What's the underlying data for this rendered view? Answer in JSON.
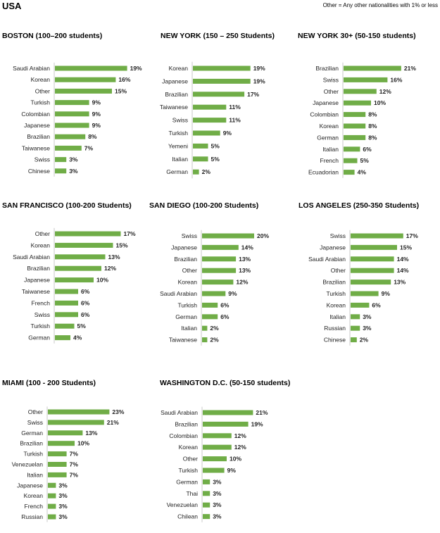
{
  "page": {
    "title": "USA",
    "note": "Other = Any other nationalities with 1% or less"
  },
  "style": {
    "bar_color": "#70ad47",
    "axis_color": "#c8c8c8"
  },
  "chart_data": [
    {
      "type": "bar",
      "orientation": "horizontal",
      "title": "BOSTON (100–200 students)",
      "categories": [
        "Saudi Arabian",
        "Korean",
        "Other",
        "Turkish",
        "Colombian",
        "Japanese",
        "Brazilian",
        "Taiwanese",
        "Swiss",
        "Chinese"
      ],
      "values": [
        19,
        16,
        15,
        9,
        9,
        9,
        8,
        7,
        3,
        3
      ],
      "labels": [
        "19%",
        "16%",
        "15%",
        "9%",
        "9%",
        "9%",
        "8%",
        "7%",
        "3%",
        "3%"
      ]
    },
    {
      "type": "bar",
      "orientation": "horizontal",
      "title": "NEW YORK (150 – 250 Students)",
      "categories": [
        "Korean",
        "Japanese",
        "Brazilian",
        "Taiwanese",
        "Swiss",
        "Turkish",
        "Yemeni",
        "Italian",
        "German"
      ],
      "values": [
        19,
        19,
        17,
        11,
        11,
        9,
        5,
        5,
        2
      ],
      "labels": [
        "19%",
        "19%",
        "17%",
        "11%",
        "11%",
        "9%",
        "5%",
        "5%",
        "2%"
      ]
    },
    {
      "type": "bar",
      "orientation": "horizontal",
      "title": "NEW YORK 30+ (50-150 students)",
      "categories": [
        "Brazilian",
        "Swiss",
        "Other",
        "Japanese",
        "Colombian",
        "Korean",
        "German",
        "Italian",
        "French",
        "Ecuadorian"
      ],
      "values": [
        21,
        16,
        12,
        10,
        8,
        8,
        8,
        6,
        5,
        4
      ],
      "labels": [
        "21%",
        "16%",
        "12%",
        "10%",
        "8%",
        "8%",
        "8%",
        "6%",
        "5%",
        "4%"
      ]
    },
    {
      "type": "bar",
      "orientation": "horizontal",
      "title": "SAN FRANCISCO (100-200 Students)",
      "categories": [
        "Other",
        "Korean",
        "Saudi Arabian",
        "Brazilian",
        "Japanese",
        "Taiwanese",
        "French",
        "Swiss",
        "Turkish",
        "German"
      ],
      "values": [
        17,
        15,
        13,
        12,
        10,
        6,
        6,
        6,
        5,
        4
      ],
      "labels": [
        "17%",
        "15%",
        "13%",
        "12%",
        "10%",
        "6%",
        "6%",
        "6%",
        "5%",
        "4%"
      ]
    },
    {
      "type": "bar",
      "orientation": "horizontal",
      "title": "SAN DIEGO (100-200 Students)",
      "categories": [
        "Swiss",
        "Japanese",
        "Brazilian",
        "Other",
        "Korean",
        "Saudi Arabian",
        "Turkish",
        "German",
        "Italian",
        "Taiwanese"
      ],
      "values": [
        20,
        14,
        13,
        13,
        12,
        9,
        6,
        6,
        2,
        2
      ],
      "labels": [
        "20%",
        "14%",
        "13%",
        "13%",
        "12%",
        "9%",
        "6%",
        "6%",
        "2%",
        "2%"
      ]
    },
    {
      "type": "bar",
      "orientation": "horizontal",
      "title": "LOS ANGELES (250-350 Students)",
      "categories": [
        "Swiss",
        "Japanese",
        "Saudi Arabian",
        "Other",
        "Brazilian",
        "Turkish",
        "Korean",
        "Italian",
        "Russian",
        "Chinese"
      ],
      "values": [
        17,
        15,
        14,
        14,
        13,
        9,
        6,
        3,
        3,
        2
      ],
      "labels": [
        "17%",
        "15%",
        "14%",
        "14%",
        "13%",
        "9%",
        "6%",
        "3%",
        "3%",
        "2%"
      ]
    },
    {
      "type": "bar",
      "orientation": "horizontal",
      "title": "MIAMI (100 - 200 Students)",
      "categories": [
        "Other",
        "Swiss",
        "German",
        "Brazilian",
        "Turkish",
        "Venezuelan",
        "Italian",
        "Japanese",
        "Korean",
        "French",
        "Russian"
      ],
      "values": [
        23,
        21,
        13,
        10,
        7,
        7,
        7,
        3,
        3,
        3,
        3
      ],
      "labels": [
        "23%",
        "21%",
        "13%",
        "10%",
        "7%",
        "7%",
        "7%",
        "3%",
        "3%",
        "3%",
        "3%"
      ]
    },
    {
      "type": "bar",
      "orientation": "horizontal",
      "title": "WASHINGTON D.C. (50-150 students)",
      "categories": [
        "Saudi Arabian",
        "Brazilian",
        "Colombian",
        "Korean",
        "Other",
        "Turkish",
        "German",
        "Thai",
        "Venezuelan",
        "Chilean"
      ],
      "values": [
        21,
        19,
        12,
        12,
        10,
        9,
        3,
        3,
        3,
        3
      ],
      "labels": [
        "21%",
        "19%",
        "12%",
        "12%",
        "10%",
        "9%",
        "3%",
        "3%",
        "3%",
        "3%"
      ]
    }
  ]
}
